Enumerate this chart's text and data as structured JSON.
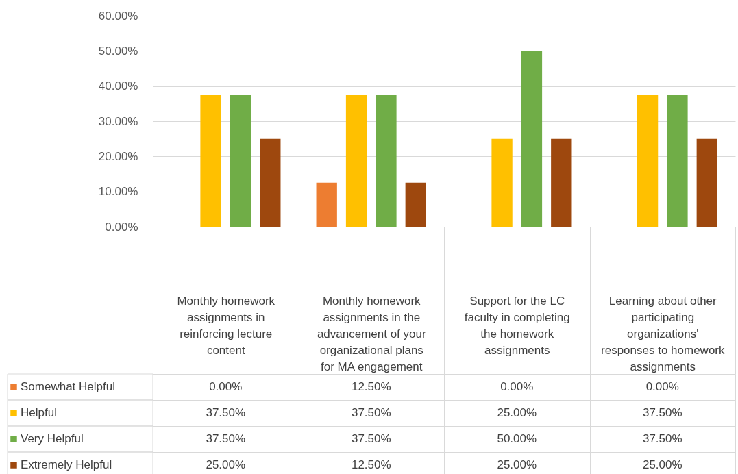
{
  "chart_data": {
    "type": "bar",
    "categories": [
      "Monthly homework assignments in reinforcing lecture content",
      "Monthly homework assignments in the advancement of your organizational plans for MA engagement",
      "Support for the LC faculty in completing the homework assignments",
      "Learning about other participating organizations' responses to homework assignments"
    ],
    "series": [
      {
        "name": "Somewhat Helpful",
        "color": "#ed7d31",
        "values": [
          0,
          12.5,
          0,
          0
        ],
        "value_labels": [
          "0.00%",
          "12.50%",
          "0.00%",
          "0.00%"
        ]
      },
      {
        "name": "Helpful",
        "color": "#ffc000",
        "values": [
          37.5,
          37.5,
          25,
          37.5
        ],
        "value_labels": [
          "37.50%",
          "37.50%",
          "25.00%",
          "37.50%"
        ]
      },
      {
        "name": "Very Helpful",
        "color": "#70ad47",
        "values": [
          37.5,
          37.5,
          50,
          37.5
        ],
        "value_labels": [
          "37.50%",
          "37.50%",
          "50.00%",
          "37.50%"
        ]
      },
      {
        "name": "Extremely Helpful",
        "color": "#9e480e",
        "values": [
          25,
          12.5,
          25,
          25
        ],
        "value_labels": [
          "25.00%",
          "12.50%",
          "25.00%",
          "25.00%"
        ]
      }
    ],
    "ylim": [
      0,
      60
    ],
    "yticks": [
      {
        "value": 0,
        "label": "0.00%"
      },
      {
        "value": 10,
        "label": "10.00%"
      },
      {
        "value": 20,
        "label": "20.00%"
      },
      {
        "value": 30,
        "label": "30.00%"
      },
      {
        "value": 40,
        "label": "40.00%"
      },
      {
        "value": 50,
        "label": "50.00%"
      },
      {
        "value": 60,
        "label": "60.00%"
      }
    ],
    "grid": "y",
    "legend": "bottom left"
  }
}
